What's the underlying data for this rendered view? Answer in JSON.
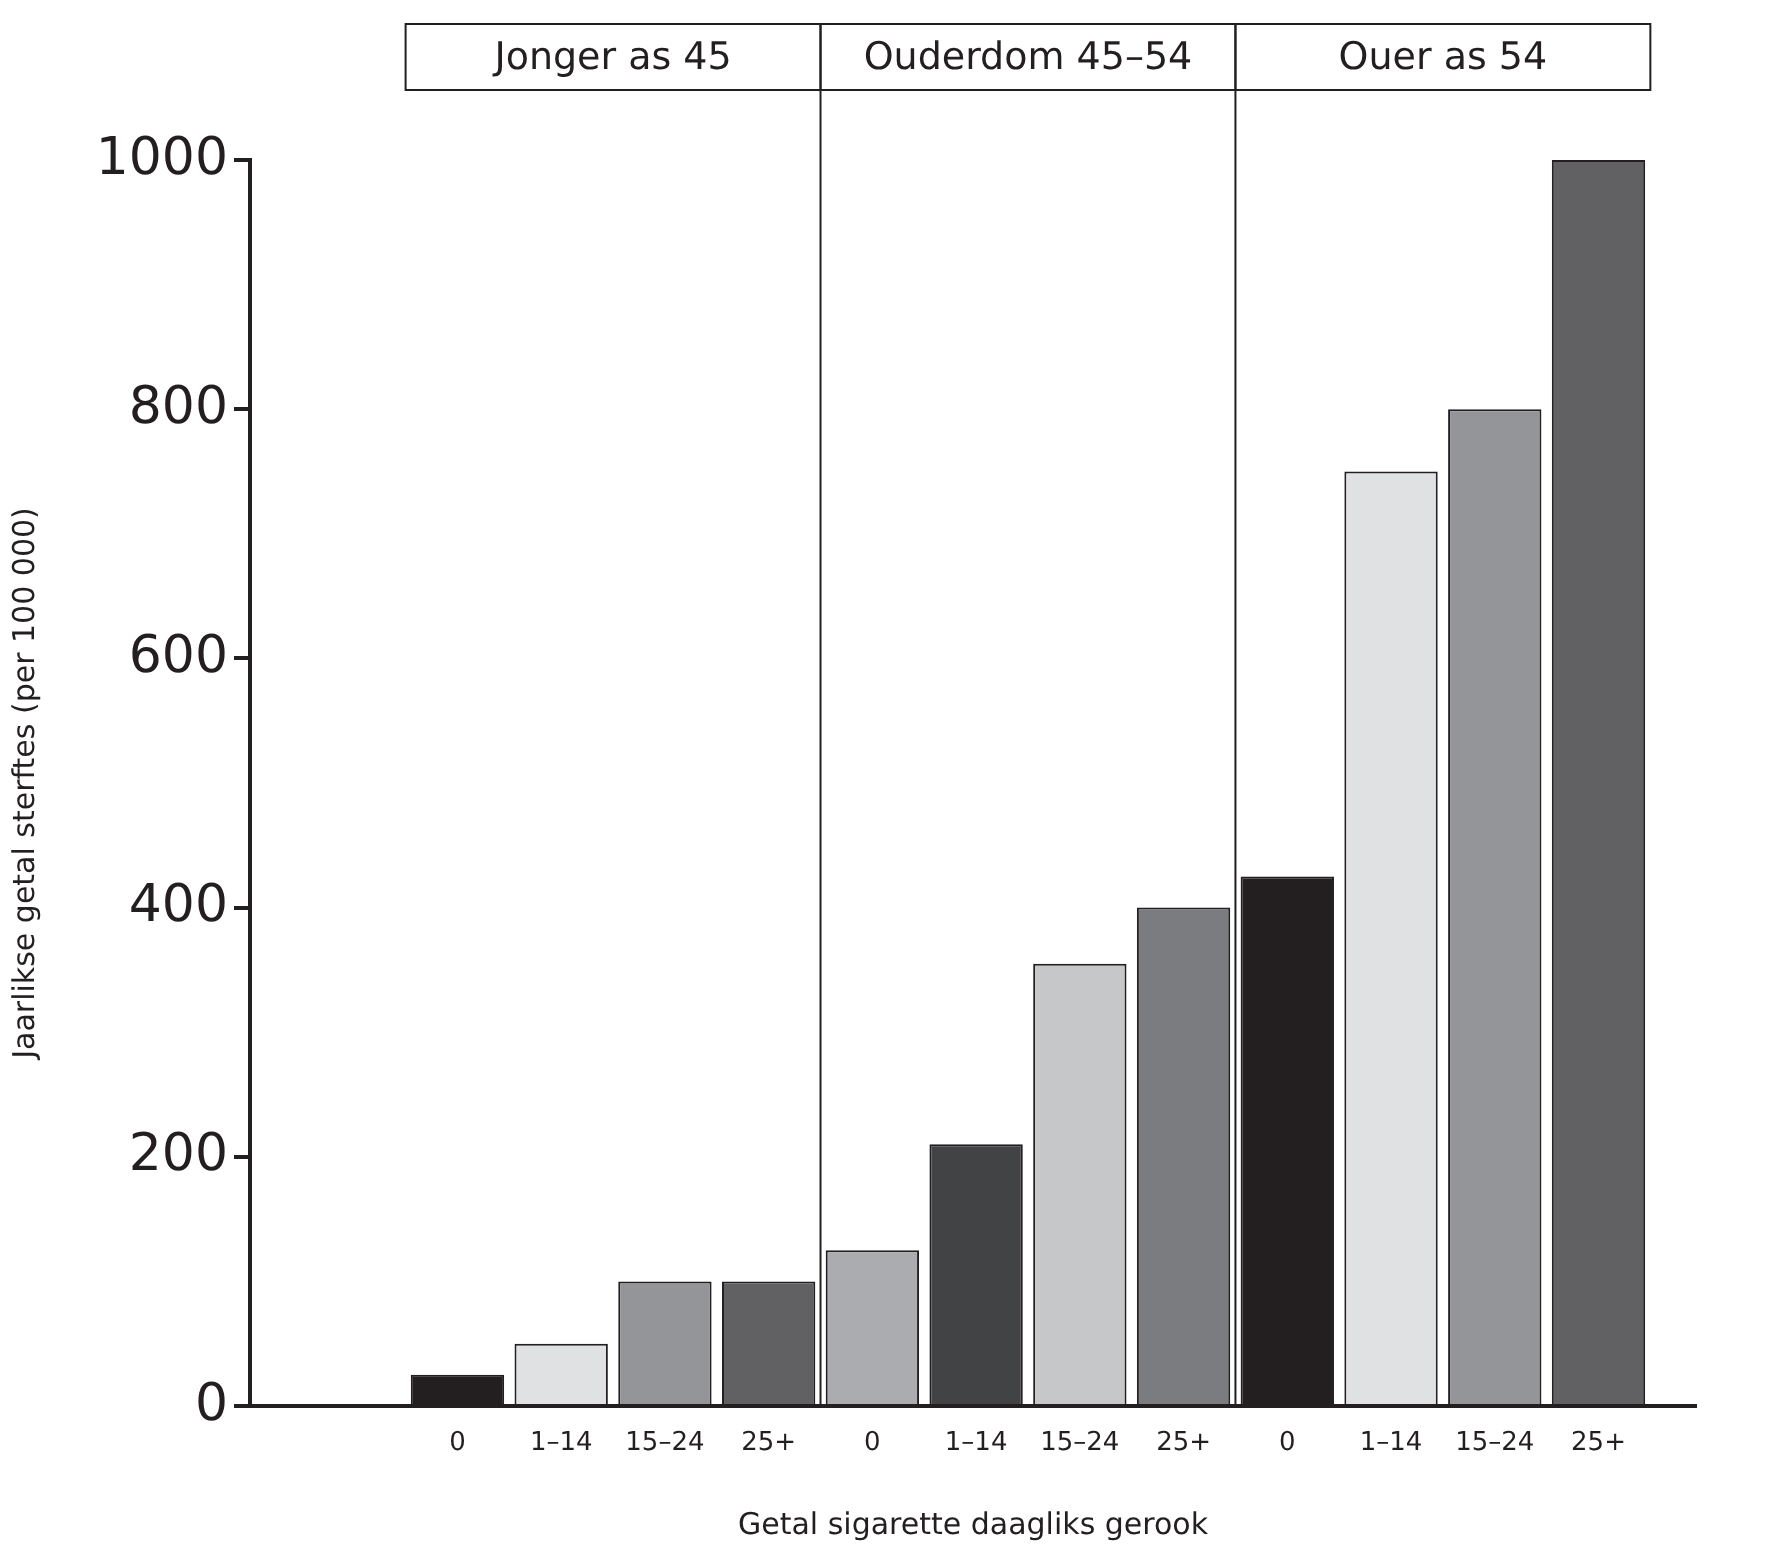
{
  "chart_data": {
    "type": "bar",
    "xlabel": "Getal sigarette daagliks gerook",
    "ylabel": "Jaarlikse getal sterftes (per 100 000)",
    "categories": [
      "0",
      "1–14",
      "15–24",
      "25+",
      "0",
      "1–14",
      "15–24",
      "25+",
      "0",
      "1–14",
      "15–24",
      "25+"
    ],
    "values": [
      25,
      50,
      100,
      100,
      125,
      210,
      355,
      400,
      425,
      750,
      800,
      1000
    ],
    "colors": [
      "#231f20",
      "#e0e1e3",
      "#939598",
      "#616164",
      "#abacaf",
      "#424345",
      "#c6c7c9",
      "#7b7c80",
      "#231f20",
      "#e0e1e3",
      "#939598",
      "#616164"
    ],
    "ylim": [
      0,
      1000
    ],
    "yticks": [
      0,
      200,
      400,
      600,
      800,
      1000
    ],
    "annotations": [
      "Jonger as 45",
      "Ouderdom 45–54",
      "Ouer as 54"
    ]
  }
}
